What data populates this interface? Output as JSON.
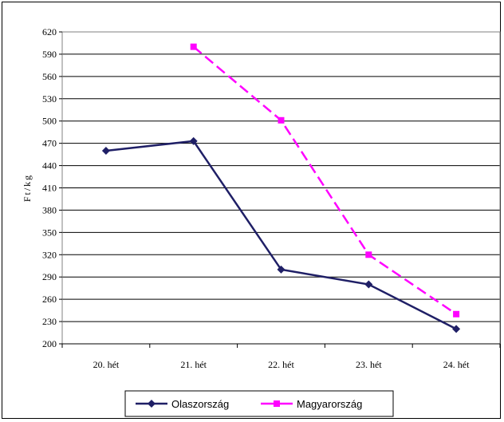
{
  "chart_data": {
    "type": "line",
    "title": "",
    "xlabel": "",
    "ylabel": "Ft/kg",
    "categories": [
      "20. hét",
      "21. hét",
      "22. hét",
      "23. hét",
      "24. hét"
    ],
    "ylim": [
      200,
      620
    ],
    "yticks": [
      200,
      230,
      260,
      290,
      320,
      350,
      380,
      410,
      440,
      470,
      500,
      530,
      560,
      590,
      620
    ],
    "grid": true,
    "legend_position": "bottom",
    "series": [
      {
        "name": "Olaszország",
        "values": [
          460,
          473,
          300,
          280,
          220
        ],
        "color": "#1f1f66",
        "marker": "diamond",
        "line_style": "solid"
      },
      {
        "name": "Magyarország",
        "values": [
          null,
          600,
          501,
          320,
          240
        ],
        "color": "#ff00ff",
        "marker": "square",
        "line_style": "dashed"
      }
    ]
  }
}
